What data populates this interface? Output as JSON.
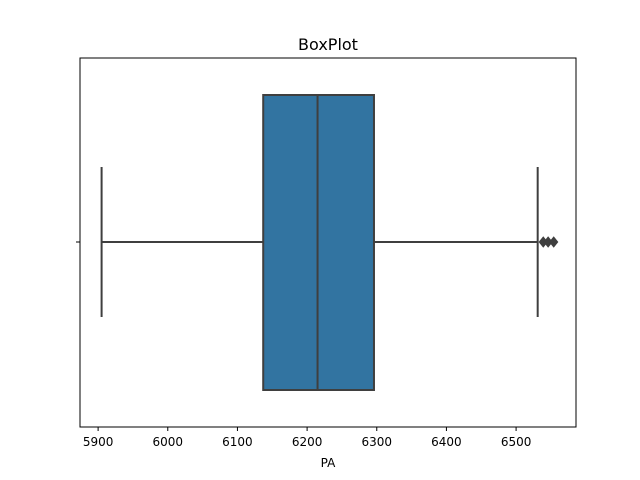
{
  "chart_data": {
    "type": "box",
    "title": "BoxPlot",
    "xlabel": "PA",
    "ylabel": "",
    "xlim": [
      5874,
      6586
    ],
    "xticks": [
      5900,
      6000,
      6100,
      6200,
      6300,
      6400,
      6500
    ],
    "xtick_labels": [
      "5900",
      "6000",
      "6100",
      "6200",
      "6300",
      "6400",
      "6500"
    ],
    "grid": false,
    "box": {
      "whisker_low": 5905,
      "q1": 6137,
      "median": 6215,
      "q3": 6296,
      "whisker_high": 6531,
      "outliers": [
        6539,
        6546,
        6554
      ]
    },
    "colors": {
      "box_fill": "#3274a1",
      "line": "#3f3f3f",
      "frame": "#000000"
    }
  }
}
